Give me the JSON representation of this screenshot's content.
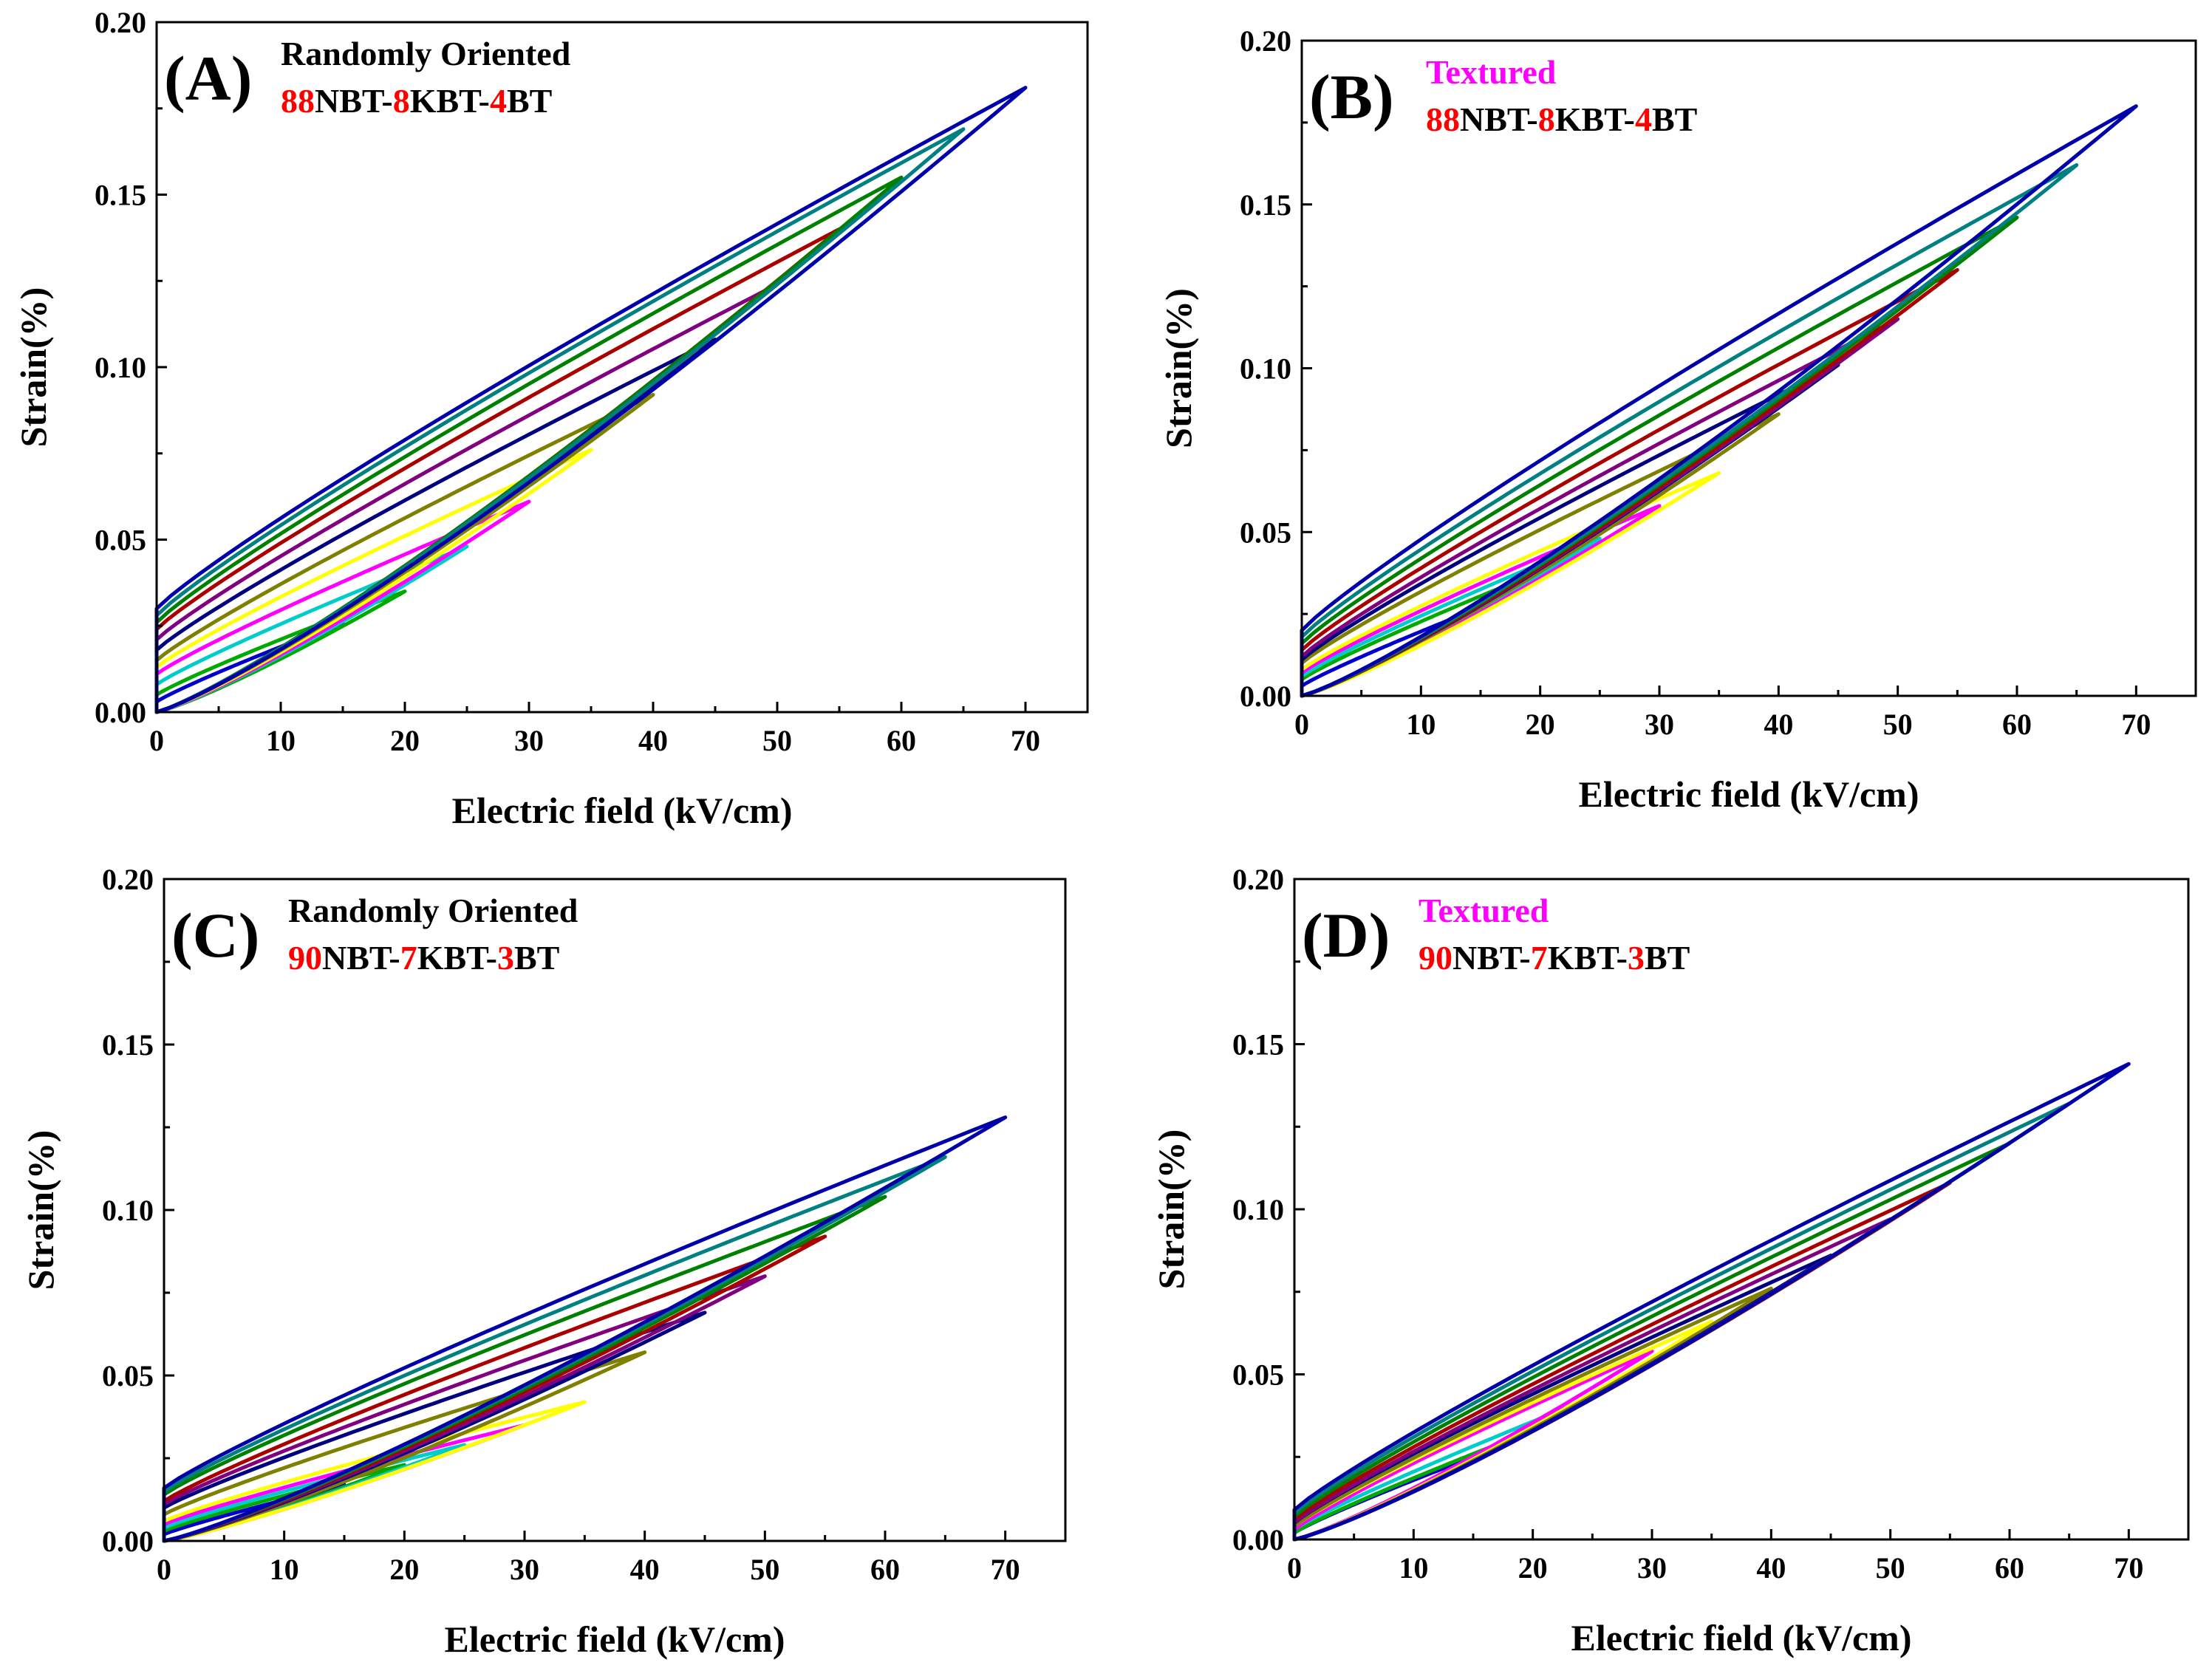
{
  "colors": {
    "axis": "#000000",
    "highlight_red": "#ff0000",
    "highlight_magenta": "#ff00ff",
    "text": "#000000"
  },
  "loop_colors": [
    "#0000cc",
    "#00aa00",
    "#00cccc",
    "#ff00ff",
    "#ffff00",
    "#808000",
    "#000080",
    "#800080",
    "#aa0000",
    "#008000",
    "#008080",
    "#0000aa"
  ],
  "chart_data": [
    {
      "panel": "(A)",
      "type": "line",
      "xlabel": "Electric field (kV/cm)",
      "ylabel": "Strain(%)",
      "xlim": [
        0,
        75
      ],
      "ylim": [
        0,
        0.2
      ],
      "xticks": [
        "0",
        "10",
        "20",
        "30",
        "40",
        "50",
        "60",
        "70"
      ],
      "yticks": [
        "0.00",
        "0.05",
        "0.10",
        "0.15",
        "0.20"
      ],
      "annotation": {
        "line1": [
          {
            "t": "Randomly Oriented",
            "c": "black"
          }
        ],
        "line2": [
          {
            "t": "88",
            "c": "red"
          },
          {
            "t": "NBT-",
            "c": "black"
          },
          {
            "t": "8",
            "c": "red"
          },
          {
            "t": "KBT-",
            "c": "black"
          },
          {
            "t": "4",
            "c": "red"
          },
          {
            "t": "BT",
            "c": "black"
          }
        ]
      },
      "series": [
        {
          "Emax": 15,
          "Smax": 0.026,
          "S0": 0.003
        },
        {
          "Emax": 20,
          "Smax": 0.035,
          "S0": 0.005
        },
        {
          "Emax": 25,
          "Smax": 0.048,
          "S0": 0.008
        },
        {
          "Emax": 30,
          "Smax": 0.061,
          "S0": 0.011
        },
        {
          "Emax": 35,
          "Smax": 0.076,
          "S0": 0.013
        },
        {
          "Emax": 40,
          "Smax": 0.092,
          "S0": 0.015
        },
        {
          "Emax": 45,
          "Smax": 0.108,
          "S0": 0.018
        },
        {
          "Emax": 50,
          "Smax": 0.124,
          "S0": 0.021
        },
        {
          "Emax": 55,
          "Smax": 0.14,
          "S0": 0.024
        },
        {
          "Emax": 60,
          "Smax": 0.155,
          "S0": 0.026
        },
        {
          "Emax": 65,
          "Smax": 0.169,
          "S0": 0.028
        },
        {
          "Emax": 70,
          "Smax": 0.181,
          "S0": 0.03
        }
      ]
    },
    {
      "panel": "(B)",
      "type": "line",
      "xlabel": "Electric field (kV/cm)",
      "ylabel": "Strain(%)",
      "xlim": [
        0,
        75
      ],
      "ylim": [
        0,
        0.2
      ],
      "xticks": [
        "0",
        "10",
        "20",
        "30",
        "40",
        "50",
        "60",
        "70"
      ],
      "yticks": [
        "0.00",
        "0.05",
        "0.10",
        "0.15",
        "0.20"
      ],
      "annotation": {
        "line1": [
          {
            "t": "Textured",
            "c": "magenta"
          }
        ],
        "line2": [
          {
            "t": "88",
            "c": "red"
          },
          {
            "t": "NBT-",
            "c": "black"
          },
          {
            "t": "8",
            "c": "red"
          },
          {
            "t": "KBT-",
            "c": "black"
          },
          {
            "t": "4",
            "c": "red"
          },
          {
            "t": "BT",
            "c": "black"
          }
        ]
      },
      "series": [
        {
          "Emax": 15,
          "Smax": 0.027,
          "S0": 0.003
        },
        {
          "Emax": 20,
          "Smax": 0.038,
          "S0": 0.005
        },
        {
          "Emax": 25,
          "Smax": 0.048,
          "S0": 0.006
        },
        {
          "Emax": 30,
          "Smax": 0.058,
          "S0": 0.007
        },
        {
          "Emax": 35,
          "Smax": 0.068,
          "S0": 0.008
        },
        {
          "Emax": 40,
          "Smax": 0.086,
          "S0": 0.01
        },
        {
          "Emax": 45,
          "Smax": 0.101,
          "S0": 0.011
        },
        {
          "Emax": 50,
          "Smax": 0.115,
          "S0": 0.012
        },
        {
          "Emax": 55,
          "Smax": 0.13,
          "S0": 0.014
        },
        {
          "Emax": 60,
          "Smax": 0.146,
          "S0": 0.016
        },
        {
          "Emax": 65,
          "Smax": 0.162,
          "S0": 0.018
        },
        {
          "Emax": 70,
          "Smax": 0.18,
          "S0": 0.02
        }
      ]
    },
    {
      "panel": "(C)",
      "type": "line",
      "xlabel": "Electric field (kV/cm)",
      "ylabel": "Strain(%)",
      "xlim": [
        0,
        75
      ],
      "ylim": [
        0,
        0.2
      ],
      "xticks": [
        "0",
        "10",
        "20",
        "30",
        "40",
        "50",
        "60",
        "70"
      ],
      "yticks": [
        "0.00",
        "0.05",
        "0.10",
        "0.15",
        "0.20"
      ],
      "annotation": {
        "line1": [
          {
            "t": "Randomly Oriented",
            "c": "black"
          }
        ],
        "line2": [
          {
            "t": "90",
            "c": "red"
          },
          {
            "t": "NBT-",
            "c": "black"
          },
          {
            "t": "7",
            "c": "red"
          },
          {
            "t": "KBT-",
            "c": "black"
          },
          {
            "t": "3",
            "c": "red"
          },
          {
            "t": "BT",
            "c": "black"
          }
        ]
      },
      "series": [
        {
          "Emax": 15,
          "Smax": 0.017,
          "S0": 0.002
        },
        {
          "Emax": 20,
          "Smax": 0.023,
          "S0": 0.003
        },
        {
          "Emax": 25,
          "Smax": 0.029,
          "S0": 0.004
        },
        {
          "Emax": 30,
          "Smax": 0.035,
          "S0": 0.005
        },
        {
          "Emax": 35,
          "Smax": 0.042,
          "S0": 0.006
        },
        {
          "Emax": 40,
          "Smax": 0.057,
          "S0": 0.008
        },
        {
          "Emax": 45,
          "Smax": 0.069,
          "S0": 0.01
        },
        {
          "Emax": 50,
          "Smax": 0.08,
          "S0": 0.011
        },
        {
          "Emax": 55,
          "Smax": 0.092,
          "S0": 0.012
        },
        {
          "Emax": 60,
          "Smax": 0.104,
          "S0": 0.014
        },
        {
          "Emax": 65,
          "Smax": 0.116,
          "S0": 0.015
        },
        {
          "Emax": 70,
          "Smax": 0.128,
          "S0": 0.016
        }
      ]
    },
    {
      "panel": "(D)",
      "type": "line",
      "xlabel": "Electric field (kV/cm)",
      "ylabel": "Strain(%)",
      "xlim": [
        0,
        75
      ],
      "ylim": [
        0,
        0.2
      ],
      "xticks": [
        "0",
        "10",
        "20",
        "30",
        "40",
        "50",
        "60",
        "70"
      ],
      "yticks": [
        "0.00",
        "0.05",
        "0.10",
        "0.15",
        "0.20"
      ],
      "annotation": {
        "line1": [
          {
            "t": "Textured",
            "c": "magenta"
          }
        ],
        "line2": [
          {
            "t": "90",
            "c": "red"
          },
          {
            "t": "NBT-",
            "c": "black"
          },
          {
            "t": "7",
            "c": "red"
          },
          {
            "t": "KBT-",
            "c": "black"
          },
          {
            "t": "3",
            "c": "red"
          },
          {
            "t": "BT",
            "c": "black"
          }
        ]
      },
      "series": [
        {
          "Emax": 15,
          "Smax": 0.025,
          "S0": 0.002
        },
        {
          "Emax": 20,
          "Smax": 0.033,
          "S0": 0.002
        },
        {
          "Emax": 25,
          "Smax": 0.043,
          "S0": 0.003
        },
        {
          "Emax": 30,
          "Smax": 0.057,
          "S0": 0.003
        },
        {
          "Emax": 35,
          "Smax": 0.066,
          "S0": 0.004
        },
        {
          "Emax": 40,
          "Smax": 0.076,
          "S0": 0.004
        },
        {
          "Emax": 45,
          "Smax": 0.086,
          "S0": 0.005
        },
        {
          "Emax": 50,
          "Smax": 0.097,
          "S0": 0.005
        },
        {
          "Emax": 55,
          "Smax": 0.108,
          "S0": 0.006
        },
        {
          "Emax": 60,
          "Smax": 0.12,
          "S0": 0.007
        },
        {
          "Emax": 65,
          "Smax": 0.132,
          "S0": 0.008
        },
        {
          "Emax": 70,
          "Smax": 0.144,
          "S0": 0.009
        }
      ]
    }
  ]
}
